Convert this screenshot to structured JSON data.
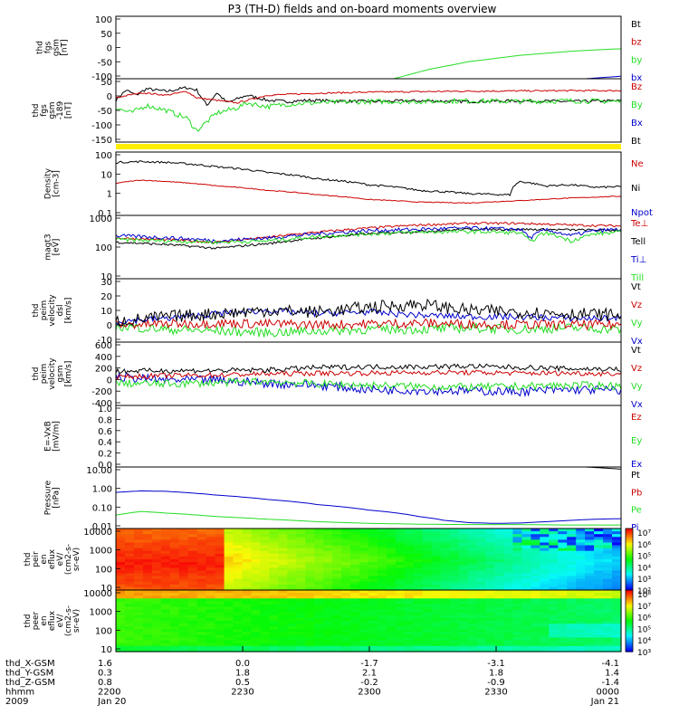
{
  "title": "P3 (TH-D) fields and on-board moments overview",
  "colors": {
    "black": "#000000",
    "red": "#cc0000",
    "green": "#22dd22",
    "blue": "#0000cc",
    "yellow": "#ffee00"
  },
  "chart_data": [
    {
      "type": "line",
      "id": "fgs",
      "ylabel": [
        "thd",
        "fgs",
        "gsm",
        "[nT]"
      ],
      "ylim": [
        -100,
        100
      ],
      "yscale": "linear",
      "ticks": [
        "100",
        "50",
        "0",
        "-50",
        "-100"
      ],
      "legend": [
        {
          "label": "Bt",
          "color": "black"
        },
        {
          "label": "bz",
          "color": "red"
        },
        {
          "label": "by",
          "color": "green"
        },
        {
          "label": "bx",
          "color": "blue"
        }
      ],
      "series": [
        {
          "color": "green",
          "x": [
            0.55,
            0.62,
            0.7,
            0.8,
            0.9,
            0.97,
            1.0
          ],
          "y": [
            -100,
            -70,
            -45,
            -25,
            -12,
            -6,
            -4
          ]
        },
        {
          "color": "blue",
          "x": [
            0.93,
            1.0
          ],
          "y": [
            -100,
            -92
          ]
        }
      ]
    },
    {
      "type": "line",
      "id": "fgs_ds",
      "ylabel": [
        "thd",
        "fgs",
        "gsm",
        "-189",
        "[nT]"
      ],
      "ylim": [
        -175,
        75
      ],
      "yscale": "linear",
      "ticks": [
        "50",
        "0",
        "-50",
        "-100",
        "-150"
      ],
      "legend": [
        {
          "label": "Bz",
          "color": "red"
        },
        {
          "label": "By",
          "color": "green"
        },
        {
          "label": "Bx",
          "color": "blue"
        },
        {
          "label": "Bt",
          "color": "black"
        }
      ],
      "series": [
        {
          "color": "black",
          "x": [
            0,
            0.02,
            0.04,
            0.06,
            0.1,
            0.14,
            0.16,
            0.18,
            0.2,
            0.22,
            0.24,
            0.26,
            0.3,
            0.34,
            0.38,
            0.42,
            0.5,
            0.6,
            0.7,
            0.8,
            0.9,
            1.0
          ],
          "y": [
            -10,
            30,
            10,
            35,
            25,
            40,
            30,
            -30,
            20,
            -20,
            -5,
            10,
            -10,
            -15,
            -10,
            -12,
            -15,
            -12,
            -15,
            -12,
            -15,
            -12
          ],
          "noise": 6
        },
        {
          "color": "red",
          "x": [
            0,
            0.05,
            0.1,
            0.14,
            0.16,
            0.2,
            0.24,
            0.3,
            0.4,
            0.5,
            0.6,
            0.7,
            0.8,
            0.9,
            1.0
          ],
          "y": [
            0,
            20,
            10,
            25,
            0,
            -10,
            -20,
            10,
            18,
            22,
            24,
            26,
            27,
            28,
            28
          ],
          "noise": 3
        },
        {
          "color": "green",
          "x": [
            0,
            0.03,
            0.06,
            0.1,
            0.14,
            0.16,
            0.2,
            0.24,
            0.26,
            0.3,
            0.34,
            0.4,
            0.5,
            0.6,
            0.7,
            0.8,
            0.9,
            1.0
          ],
          "y": [
            -40,
            -60,
            -30,
            -50,
            -80,
            -130,
            -60,
            -40,
            -20,
            -35,
            -25,
            -20,
            -15,
            -15,
            -12,
            -15,
            -12,
            -15
          ],
          "noise": 10
        }
      ]
    },
    {
      "type": "line",
      "id": "density",
      "ylabel": [
        "Density",
        "[cm-3]"
      ],
      "ylim": [
        0.01,
        200
      ],
      "yscale": "log",
      "ticks": [
        "100",
        "10",
        "1",
        "0.1"
      ],
      "legend": [
        {
          "label": "Ne",
          "color": "red"
        },
        {
          "label": "Ni",
          "color": "black"
        },
        {
          "label": "Npot",
          "color": "blue"
        }
      ],
      "series": [
        {
          "color": "black",
          "x": [
            0,
            0.05,
            0.1,
            0.15,
            0.2,
            0.3,
            0.4,
            0.5,
            0.6,
            0.7,
            0.78,
            0.8,
            0.85,
            0.9,
            0.95,
            1.0
          ],
          "y": [
            40,
            45,
            40,
            30,
            20,
            8,
            3,
            1.2,
            0.5,
            0.3,
            0.25,
            2,
            1,
            1.2,
            0.8,
            0.9
          ],
          "noise": 0.05
        },
        {
          "color": "red",
          "x": [
            0,
            0.05,
            0.1,
            0.2,
            0.3,
            0.4,
            0.5,
            0.6,
            0.7,
            0.8,
            0.9,
            1.0
          ],
          "y": [
            1.5,
            2.5,
            2,
            1,
            0.5,
            0.25,
            0.12,
            0.08,
            0.07,
            0.1,
            0.15,
            0.2
          ],
          "noise": 0.02
        }
      ]
    },
    {
      "type": "line",
      "id": "temperature",
      "ylabel": [
        "magt3",
        "[eV]"
      ],
      "ylim": [
        10,
        1500
      ],
      "yscale": "log",
      "ticks": [
        "1000",
        "100",
        "10"
      ],
      "legend": [
        {
          "label": "Te⊥",
          "color": "red"
        },
        {
          "label": "Tell",
          "color": "black"
        },
        {
          "label": "Ti⊥",
          "color": "blue"
        },
        {
          "label": "Till",
          "color": "green"
        }
      ],
      "series": [
        {
          "color": "red",
          "x": [
            0,
            0.1,
            0.2,
            0.3,
            0.4,
            0.5,
            0.6,
            0.7,
            0.8,
            0.9,
            1.0
          ],
          "y": [
            250,
            220,
            180,
            260,
            400,
            550,
            700,
            800,
            800,
            700,
            650
          ],
          "noise": 0.03
        },
        {
          "color": "black",
          "x": [
            0,
            0.1,
            0.2,
            0.3,
            0.4,
            0.5,
            0.6,
            0.7,
            0.8,
            0.9,
            1.0
          ],
          "y": [
            180,
            150,
            110,
            160,
            250,
            350,
            420,
            500,
            500,
            480,
            460
          ],
          "noise": 0.03
        },
        {
          "color": "blue",
          "x": [
            0,
            0.1,
            0.2,
            0.3,
            0.4,
            0.5,
            0.6,
            0.7,
            0.8,
            0.82,
            0.85,
            0.9,
            0.95,
            1.0
          ],
          "y": [
            300,
            260,
            200,
            250,
            350,
            450,
            500,
            550,
            500,
            250,
            480,
            300,
            450,
            500
          ],
          "noise": 0.05
        },
        {
          "color": "green",
          "x": [
            0,
            0.1,
            0.2,
            0.3,
            0.4,
            0.5,
            0.6,
            0.7,
            0.8,
            0.82,
            0.85,
            0.9,
            0.95,
            1.0
          ],
          "y": [
            220,
            200,
            180,
            200,
            280,
            350,
            400,
            420,
            380,
            180,
            380,
            200,
            350,
            400
          ],
          "noise": 0.05
        }
      ]
    },
    {
      "type": "line",
      "id": "esa_vel",
      "ylabel": [
        "thd",
        "peim",
        "velocity",
        "dsl",
        "[km/s]"
      ],
      "ylim": [
        -10,
        30
      ],
      "yscale": "linear",
      "ticks": [
        "30",
        "20",
        "10",
        "0",
        "-10"
      ],
      "legend": [
        {
          "label": "Vt",
          "color": "black"
        },
        {
          "label": "Vz",
          "color": "red"
        },
        {
          "label": "Vy",
          "color": "green"
        },
        {
          "label": "Vx",
          "color": "blue"
        }
      ],
      "series": [
        {
          "color": "green",
          "x": [
            0,
            0.1,
            0.2,
            0.3,
            0.4,
            0.5,
            0.6,
            0.7,
            0.8,
            0.9,
            1.0
          ],
          "y": [
            0,
            -2,
            -3,
            -4,
            -3,
            -2,
            -2,
            -1,
            -2,
            -1,
            -2
          ],
          "noise": 3
        },
        {
          "color": "red",
          "x": [
            0,
            0.2,
            0.4,
            0.6,
            0.8,
            1.0
          ],
          "y": [
            1,
            2,
            1,
            2,
            1,
            1
          ],
          "noise": 3
        },
        {
          "color": "blue",
          "x": [
            0,
            0.1,
            0.2,
            0.3,
            0.4,
            0.5,
            0.6,
            0.7,
            0.8,
            0.9,
            1.0
          ],
          "y": [
            3,
            5,
            8,
            10,
            8,
            9,
            7,
            6,
            6,
            5,
            5
          ],
          "noise": 2
        },
        {
          "color": "black",
          "x": [
            0,
            0.1,
            0.2,
            0.3,
            0.4,
            0.5,
            0.6,
            0.7,
            0.8,
            0.9,
            1.0
          ],
          "y": [
            3,
            6,
            8,
            10,
            9,
            12,
            14,
            10,
            9,
            8,
            7
          ],
          "noise": 4
        }
      ]
    },
    {
      "type": "line",
      "id": "esa_vel_gsm",
      "ylabel": [
        "thd",
        "peim",
        "velocity",
        "gsm",
        "[km/s]"
      ],
      "ylim": [
        -400,
        600
      ],
      "yscale": "linear",
      "ticks": [
        "600",
        "400",
        "200",
        "0",
        "-200",
        "-400"
      ],
      "legend": [
        {
          "label": "Vt",
          "color": "black"
        },
        {
          "label": "Vz",
          "color": "red"
        },
        {
          "label": "Vy",
          "color": "green"
        },
        {
          "label": "Vx",
          "color": "blue"
        }
      ],
      "series": [
        {
          "color": "blue",
          "x": [
            0,
            0.1,
            0.2,
            0.3,
            0.4,
            0.5,
            0.6,
            0.7,
            0.8,
            0.9,
            1.0
          ],
          "y": [
            50,
            0,
            0,
            -50,
            -80,
            -150,
            -160,
            -170,
            -180,
            -150,
            -160
          ],
          "noise": 70
        },
        {
          "color": "green",
          "x": [
            0,
            0.1,
            0.2,
            0.3,
            0.4,
            0.5,
            0.6,
            0.7,
            0.8,
            0.9,
            1.0
          ],
          "y": [
            -50,
            -60,
            -40,
            -20,
            -60,
            -80,
            -100,
            -110,
            -100,
            -80,
            -90
          ],
          "noise": 60
        },
        {
          "color": "red",
          "x": [
            0,
            0.1,
            0.2,
            0.3,
            0.4,
            0.5,
            0.6,
            0.7,
            0.8,
            0.9,
            1.0
          ],
          "y": [
            50,
            70,
            80,
            100,
            110,
            110,
            120,
            120,
            110,
            110,
            100
          ],
          "noise": 40
        },
        {
          "color": "black",
          "x": [
            0,
            0.1,
            0.2,
            0.3,
            0.4,
            0.5,
            0.6,
            0.7,
            0.8,
            0.9,
            1.0
          ],
          "y": [
            140,
            150,
            150,
            160,
            200,
            210,
            210,
            220,
            200,
            180,
            170
          ],
          "noise": 40
        }
      ]
    },
    {
      "type": "line",
      "id": "efield",
      "ylabel": [
        "E=-VxB",
        "[mV/m]"
      ],
      "ylim": [
        0,
        1
      ],
      "yscale": "linear",
      "ticks": [
        "1.0",
        "0.8",
        "0.6",
        "0.4",
        "0.2",
        "0.0"
      ],
      "legend": [
        {
          "label": "Ez",
          "color": "red"
        },
        {
          "label": "Ey",
          "color": "green"
        },
        {
          "label": "Ex",
          "color": "blue"
        }
      ],
      "series": []
    },
    {
      "type": "line",
      "id": "pressure",
      "ylabel": [
        "Pressure",
        "[nPa]"
      ],
      "ylim": [
        0.01,
        40
      ],
      "yscale": "log",
      "ticks": [
        "10.00",
        "1.00",
        "0.10",
        "0.01"
      ],
      "legend": [
        {
          "label": "Pt",
          "color": "black"
        },
        {
          "label": "Pb",
          "color": "red"
        },
        {
          "label": "Pe",
          "color": "green"
        },
        {
          "label": "Pi",
          "color": "blue"
        }
      ],
      "series": [
        {
          "color": "blue",
          "x": [
            0,
            0.05,
            0.1,
            0.2,
            0.3,
            0.4,
            0.5,
            0.6,
            0.65,
            0.7,
            0.75,
            0.8,
            0.85,
            0.9,
            0.95,
            1.0
          ],
          "y": [
            1.3,
            1.6,
            1.5,
            0.9,
            0.5,
            0.25,
            0.12,
            0.05,
            0.03,
            0.022,
            0.02,
            0.021,
            0.025,
            0.03,
            0.035,
            0.038
          ],
          "noise": 0
        },
        {
          "color": "green",
          "x": [
            0,
            0.05,
            0.1,
            0.2,
            0.3,
            0.4,
            0.5,
            0.6,
            0.7,
            0.8,
            0.9,
            1.0
          ],
          "y": [
            0.06,
            0.1,
            0.08,
            0.05,
            0.035,
            0.025,
            0.02,
            0.018,
            0.017,
            0.017,
            0.016,
            0.016
          ],
          "noise": 0
        },
        {
          "color": "black",
          "x": [
            0.93,
            1.0
          ],
          "y": [
            40,
            30
          ],
          "noise": 0
        }
      ]
    },
    {
      "type": "heatmap",
      "id": "peir",
      "ylabel": [
        "thd",
        "peir",
        "en",
        "eflux",
        "eV/",
        "(cm2-s-",
        "sr-eV)"
      ],
      "ylim": [
        5,
        20000
      ],
      "yscale": "log",
      "ticks": [
        "10000",
        "1000",
        "100",
        "10"
      ],
      "colorbar": {
        "labels": [
          "10⁷",
          "10⁶",
          "10⁵",
          "10⁴",
          "10³",
          "10²"
        ]
      }
    },
    {
      "type": "heatmap",
      "id": "peer",
      "ylabel": [
        "thd",
        "peer",
        "en",
        "eflux",
        "eV/",
        "(cm2-s-",
        "sr-eV)"
      ],
      "ylim": [
        5,
        20000
      ],
      "yscale": "log",
      "ticks": [
        "10000",
        "1000",
        "100",
        "10"
      ],
      "colorbar": {
        "labels": [
          "10⁸",
          "10⁷",
          "10⁶",
          "10⁵",
          "10⁴",
          "10³"
        ]
      }
    }
  ],
  "xaxis": {
    "rows": [
      {
        "label": "thd_X-GSM",
        "values": [
          "1.6",
          "0.0",
          "-1.7",
          "-3.1",
          "-4.1"
        ]
      },
      {
        "label": "thd_Y-GSM",
        "values": [
          "0.3",
          "1.8",
          "2.1",
          "1.8",
          "1.4"
        ]
      },
      {
        "label": "thd_Z-GSM",
        "values": [
          "0.8",
          "0.5",
          "-0.2",
          "-0.9",
          "-1.4"
        ]
      },
      {
        "label": "hhmm",
        "values": [
          "2200",
          "2230",
          "2300",
          "2330",
          "0000"
        ]
      },
      {
        "label": "2009",
        "values": [
          "Jan 20",
          "",
          "",
          "",
          "Jan 21"
        ]
      }
    ]
  }
}
